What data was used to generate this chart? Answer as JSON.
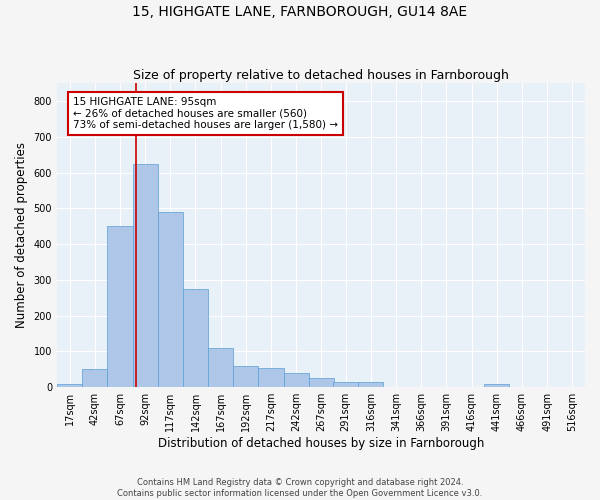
{
  "title_line1": "15, HIGHGATE LANE, FARNBOROUGH, GU14 8AE",
  "title_line2": "Size of property relative to detached houses in Farnborough",
  "xlabel": "Distribution of detached houses by size in Farnborough",
  "ylabel": "Number of detached properties",
  "footnote": "Contains HM Land Registry data © Crown copyright and database right 2024.\nContains public sector information licensed under the Open Government Licence v3.0.",
  "bin_labels": [
    "17sqm",
    "42sqm",
    "67sqm",
    "92sqm",
    "117sqm",
    "142sqm",
    "167sqm",
    "192sqm",
    "217sqm",
    "242sqm",
    "267sqm",
    "291sqm",
    "316sqm",
    "341sqm",
    "366sqm",
    "391sqm",
    "416sqm",
    "441sqm",
    "466sqm",
    "491sqm",
    "516sqm"
  ],
  "bin_edges": [
    17,
    42,
    67,
    92,
    117,
    142,
    167,
    192,
    217,
    242,
    267,
    291,
    316,
    341,
    366,
    391,
    416,
    441,
    466,
    491,
    516
  ],
  "bar_heights": [
    10,
    50,
    450,
    625,
    490,
    275,
    110,
    60,
    55,
    40,
    25,
    15,
    15,
    0,
    0,
    0,
    0,
    10,
    0,
    0,
    0
  ],
  "bar_color": "#aec6e8",
  "bar_edge_color": "#5a9fd4",
  "property_line_x": 95,
  "property_line_color": "#cc0000",
  "annotation_text": "15 HIGHGATE LANE: 95sqm\n← 26% of detached houses are smaller (560)\n73% of semi-detached houses are larger (1,580) →",
  "annotation_box_color": "#cc0000",
  "ylim": [
    0,
    850
  ],
  "yticks": [
    0,
    100,
    200,
    300,
    400,
    500,
    600,
    700,
    800
  ],
  "background_color": "#e8f0f8",
  "grid_color": "#ffffff",
  "title_fontsize": 10,
  "subtitle_fontsize": 9,
  "axis_label_fontsize": 8.5,
  "tick_fontsize": 7,
  "annotation_fontsize": 7.5,
  "fig_bg_color": "#f5f5f5"
}
